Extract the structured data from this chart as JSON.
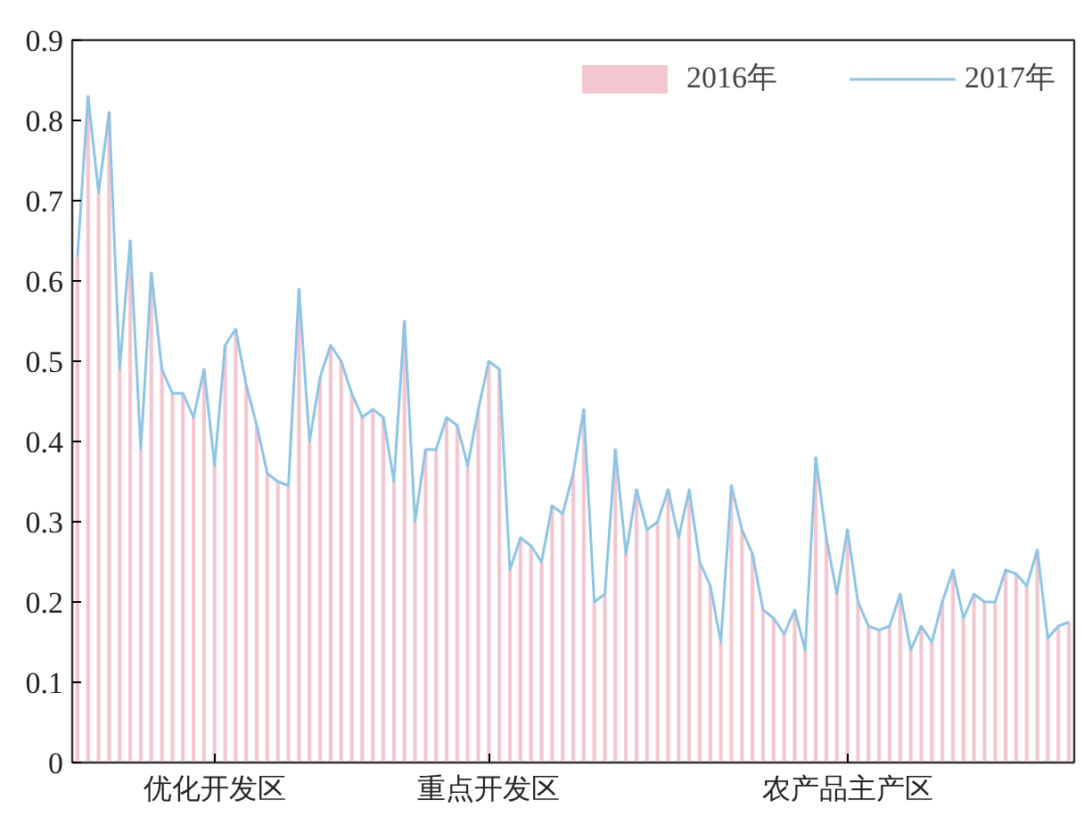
{
  "chart_data": {
    "type": "bar",
    "categories": [
      null,
      null,
      null,
      null,
      null,
      null,
      null,
      null,
      null,
      null,
      null,
      null,
      null,
      "优化开发区",
      null,
      null,
      null,
      null,
      null,
      null,
      null,
      null,
      null,
      null,
      null,
      null,
      null,
      null,
      null,
      null,
      null,
      null,
      null,
      null,
      null,
      null,
      null,
      null,
      null,
      "重点开发区",
      null,
      null,
      null,
      null,
      null,
      null,
      null,
      null,
      null,
      null,
      null,
      null,
      null,
      null,
      null,
      null,
      null,
      null,
      null,
      null,
      null,
      null,
      null,
      null,
      null,
      null,
      null,
      null,
      null,
      null,
      null,
      null,
      null,
      "农产品主产区",
      null,
      null,
      null,
      null,
      null,
      null,
      null,
      null,
      null,
      null,
      null,
      null,
      null,
      null,
      null,
      null,
      null,
      null,
      null,
      null,
      null
    ],
    "series": [
      {
        "name": "2016年",
        "color": "#f4c6d0",
        "values": [
          0.63,
          0.83,
          0.71,
          0.81,
          0.49,
          0.65,
          0.39,
          0.61,
          0.49,
          0.46,
          0.46,
          0.43,
          0.49,
          0.37,
          0.52,
          0.54,
          0.47,
          0.42,
          0.36,
          0.35,
          0.345,
          0.59,
          0.4,
          0.48,
          0.52,
          0.5,
          0.46,
          0.43,
          0.44,
          0.43,
          0.35,
          0.55,
          0.3,
          0.39,
          0.39,
          0.43,
          0.42,
          0.37,
          0.44,
          0.5,
          0.49,
          0.24,
          0.28,
          0.27,
          0.25,
          0.32,
          0.31,
          0.36,
          0.44,
          0.2,
          0.21,
          0.39,
          0.26,
          0.34,
          0.29,
          0.3,
          0.34,
          0.28,
          0.34,
          0.25,
          0.22,
          0.15,
          0.345,
          0.29,
          0.26,
          0.19,
          0.18,
          0.16,
          0.19,
          0.14,
          0.38,
          0.28,
          0.21,
          0.29,
          0.2,
          0.17,
          0.165,
          0.17,
          0.21,
          0.14,
          0.17,
          0.15,
          0.2,
          0.24,
          0.18,
          0.21,
          0.2,
          0.2,
          0.24,
          0.235,
          0.22,
          0.265,
          0.155,
          0.17,
          0.175
        ]
      },
      {
        "name": "2017年",
        "type": "line",
        "color": "#8ec4e6",
        "values": [
          0.63,
          0.83,
          0.71,
          0.81,
          0.49,
          0.65,
          0.39,
          0.61,
          0.49,
          0.46,
          0.46,
          0.43,
          0.49,
          0.37,
          0.52,
          0.54,
          0.47,
          0.42,
          0.36,
          0.35,
          0.345,
          0.59,
          0.4,
          0.48,
          0.52,
          0.5,
          0.46,
          0.43,
          0.44,
          0.43,
          0.35,
          0.55,
          0.3,
          0.39,
          0.39,
          0.43,
          0.42,
          0.37,
          0.44,
          0.5,
          0.49,
          0.24,
          0.28,
          0.27,
          0.25,
          0.32,
          0.31,
          0.36,
          0.44,
          0.2,
          0.21,
          0.39,
          0.26,
          0.34,
          0.29,
          0.3,
          0.34,
          0.28,
          0.34,
          0.25,
          0.22,
          0.15,
          0.345,
          0.29,
          0.26,
          0.19,
          0.18,
          0.16,
          0.19,
          0.14,
          0.38,
          0.28,
          0.21,
          0.29,
          0.2,
          0.17,
          0.165,
          0.17,
          0.21,
          0.14,
          0.17,
          0.15,
          0.2,
          0.24,
          0.18,
          0.21,
          0.2,
          0.2,
          0.24,
          0.235,
          0.22,
          0.265,
          0.155,
          0.17,
          0.175
        ]
      }
    ],
    "ylim": [
      0,
      0.9
    ],
    "yticks": [
      0,
      0.1,
      0.2,
      0.3,
      0.4,
      0.5,
      0.6,
      0.7,
      0.8,
      0.9
    ],
    "grid": false,
    "legend": "top right"
  }
}
